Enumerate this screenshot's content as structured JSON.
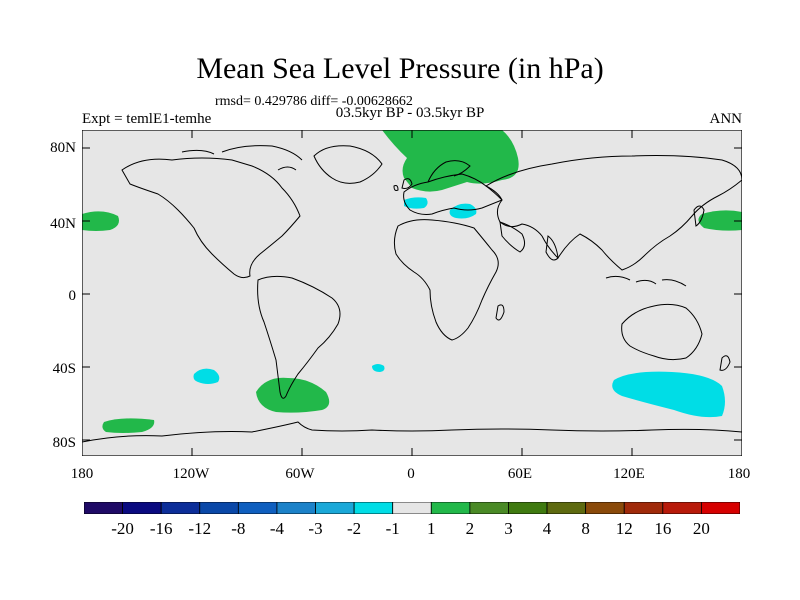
{
  "figure": {
    "title": "Mean Sea Level Pressure (in hPa)",
    "stats_line": "rmsd= 0.429786 diff= -0.00628662",
    "period": "03.5kyr BP - 03.5kyr BP",
    "experiment": "Expt = temlE1-temhe",
    "season": "ANN"
  },
  "map": {
    "background_color": "#e6e6e6",
    "lat_ticks": [
      "80N",
      "40N",
      "0",
      "40S",
      "80S"
    ],
    "lon_ticks": [
      "180",
      "120W",
      "60W",
      "0",
      "60E",
      "120E",
      "180"
    ],
    "anomaly_regions": [
      {
        "name": "arctic-scandinavia",
        "level": "1 to 2",
        "color": "#22b84a"
      },
      {
        "name": "north-pacific-east",
        "level": "1 to 2",
        "color": "#22b84a"
      },
      {
        "name": "north-pacific-west",
        "level": "1 to 2",
        "color": "#22b84a"
      },
      {
        "name": "europe-west",
        "level": "-2 to -1",
        "color": "#00dde6"
      },
      {
        "name": "black-sea",
        "level": "-2 to -1",
        "color": "#00dde6"
      },
      {
        "name": "south-pacific",
        "level": "-2 to -1",
        "color": "#00dde6"
      },
      {
        "name": "south-atlantic",
        "level": "-2 to -1",
        "color": "#00dde6"
      },
      {
        "name": "drake-passage",
        "level": "1 to 2",
        "color": "#22b84a"
      },
      {
        "name": "southern-ocean-pacific",
        "level": "1 to 2",
        "color": "#22b84a"
      },
      {
        "name": "south-of-australia",
        "level": "-2 to -1",
        "color": "#00dde6"
      }
    ]
  },
  "colorbar": {
    "labels": [
      "-20",
      "-16",
      "-12",
      "-8",
      "-4",
      "-3",
      "-2",
      "-1",
      "1",
      "2",
      "3",
      "4",
      "8",
      "12",
      "16",
      "20"
    ],
    "colors": [
      "#1f0a66",
      "#0a0a80",
      "#0c2e99",
      "#0a48a8",
      "#0f5fbf",
      "#1c82c9",
      "#1aa8d8",
      "#00dde6",
      "#e6e6e6",
      "#22b84a",
      "#4a8a26",
      "#3f7a10",
      "#5e6a10",
      "#8a4a0a",
      "#a02a0a",
      "#b81a0a",
      "#d60000"
    ]
  }
}
